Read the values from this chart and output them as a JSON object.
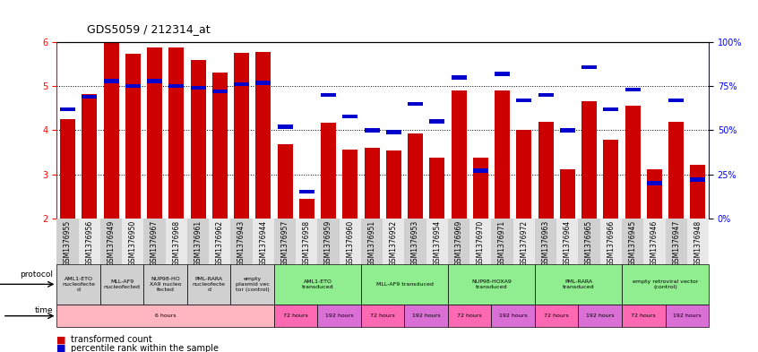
{
  "title": "GDS5059 / 212314_at",
  "gsm_ids": [
    "GSM1376955",
    "GSM1376956",
    "GSM1376949",
    "GSM1376950",
    "GSM1376967",
    "GSM1376968",
    "GSM1376961",
    "GSM1376962",
    "GSM1376943",
    "GSM1376944",
    "GSM1376957",
    "GSM1376958",
    "GSM1376959",
    "GSM1376960",
    "GSM1376951",
    "GSM1376952",
    "GSM1376953",
    "GSM1376954",
    "GSM1376969",
    "GSM1376970",
    "GSM1376971",
    "GSM1376972",
    "GSM1376963",
    "GSM1376964",
    "GSM1376965",
    "GSM1376966",
    "GSM1376945",
    "GSM1376946",
    "GSM1376947",
    "GSM1376948"
  ],
  "transformed_count": [
    4.25,
    4.82,
    6.0,
    5.73,
    5.88,
    5.88,
    5.6,
    5.32,
    5.75,
    5.78,
    3.68,
    2.44,
    4.18,
    3.56,
    3.6,
    3.55,
    3.92,
    3.38,
    4.9,
    3.38,
    4.9,
    4.0,
    4.2,
    3.12,
    4.65,
    3.78,
    4.55,
    3.12,
    4.2,
    3.22
  ],
  "percentile_rank": [
    62,
    69,
    78,
    75,
    78,
    75,
    74,
    72,
    76,
    77,
    52,
    15,
    70,
    58,
    50,
    49,
    65,
    55,
    80,
    27,
    82,
    67,
    70,
    50,
    86,
    62,
    73,
    20,
    67,
    22
  ],
  "y_min": 2.0,
  "y_max": 6.0,
  "bar_color": "#cc0000",
  "blue_color": "#0000cc",
  "protocol_groups": [
    {
      "label": "AML1-ETO\nnucleofecte\nd",
      "start": 0,
      "end": 2,
      "color": "#d0d0d0"
    },
    {
      "label": "MLL-AF9\nnucleofected",
      "start": 2,
      "end": 4,
      "color": "#d0d0d0"
    },
    {
      "label": "NUP98-HO\nXA9 nucleo\nfected",
      "start": 4,
      "end": 6,
      "color": "#d0d0d0"
    },
    {
      "label": "PML-RARA\nnucleofecte\nd",
      "start": 6,
      "end": 8,
      "color": "#d0d0d0"
    },
    {
      "label": "empty\nplasmid vec\ntor (control)",
      "start": 8,
      "end": 10,
      "color": "#d0d0d0"
    },
    {
      "label": "AML1-ETO\ntransduced",
      "start": 10,
      "end": 14,
      "color": "#90EE90"
    },
    {
      "label": "MLL-AF9 transduced",
      "start": 14,
      "end": 18,
      "color": "#90EE90"
    },
    {
      "label": "NUP98-HOXA9\ntransduced",
      "start": 18,
      "end": 22,
      "color": "#90EE90"
    },
    {
      "label": "PML-RARA\ntransduced",
      "start": 22,
      "end": 26,
      "color": "#90EE90"
    },
    {
      "label": "empty retroviral vector\n(control)",
      "start": 26,
      "end": 30,
      "color": "#90EE90"
    }
  ],
  "time_groups": [
    {
      "label": "6 hours",
      "start": 0,
      "end": 10,
      "color": "#FFB6C1"
    },
    {
      "label": "72 hours",
      "start": 10,
      "end": 12,
      "color": "#FF69B4"
    },
    {
      "label": "192 hours",
      "start": 12,
      "end": 14,
      "color": "#DA70D6"
    },
    {
      "label": "72 hours",
      "start": 14,
      "end": 16,
      "color": "#FF69B4"
    },
    {
      "label": "192 hours",
      "start": 16,
      "end": 18,
      "color": "#DA70D6"
    },
    {
      "label": "72 hours",
      "start": 18,
      "end": 20,
      "color": "#FF69B4"
    },
    {
      "label": "192 hours",
      "start": 20,
      "end": 22,
      "color": "#DA70D6"
    },
    {
      "label": "72 hours",
      "start": 22,
      "end": 24,
      "color": "#FF69B4"
    },
    {
      "label": "192 hours",
      "start": 24,
      "end": 26,
      "color": "#DA70D6"
    },
    {
      "label": "72 hours",
      "start": 26,
      "end": 28,
      "color": "#FF69B4"
    },
    {
      "label": "192 hours",
      "start": 28,
      "end": 30,
      "color": "#DA70D6"
    }
  ]
}
